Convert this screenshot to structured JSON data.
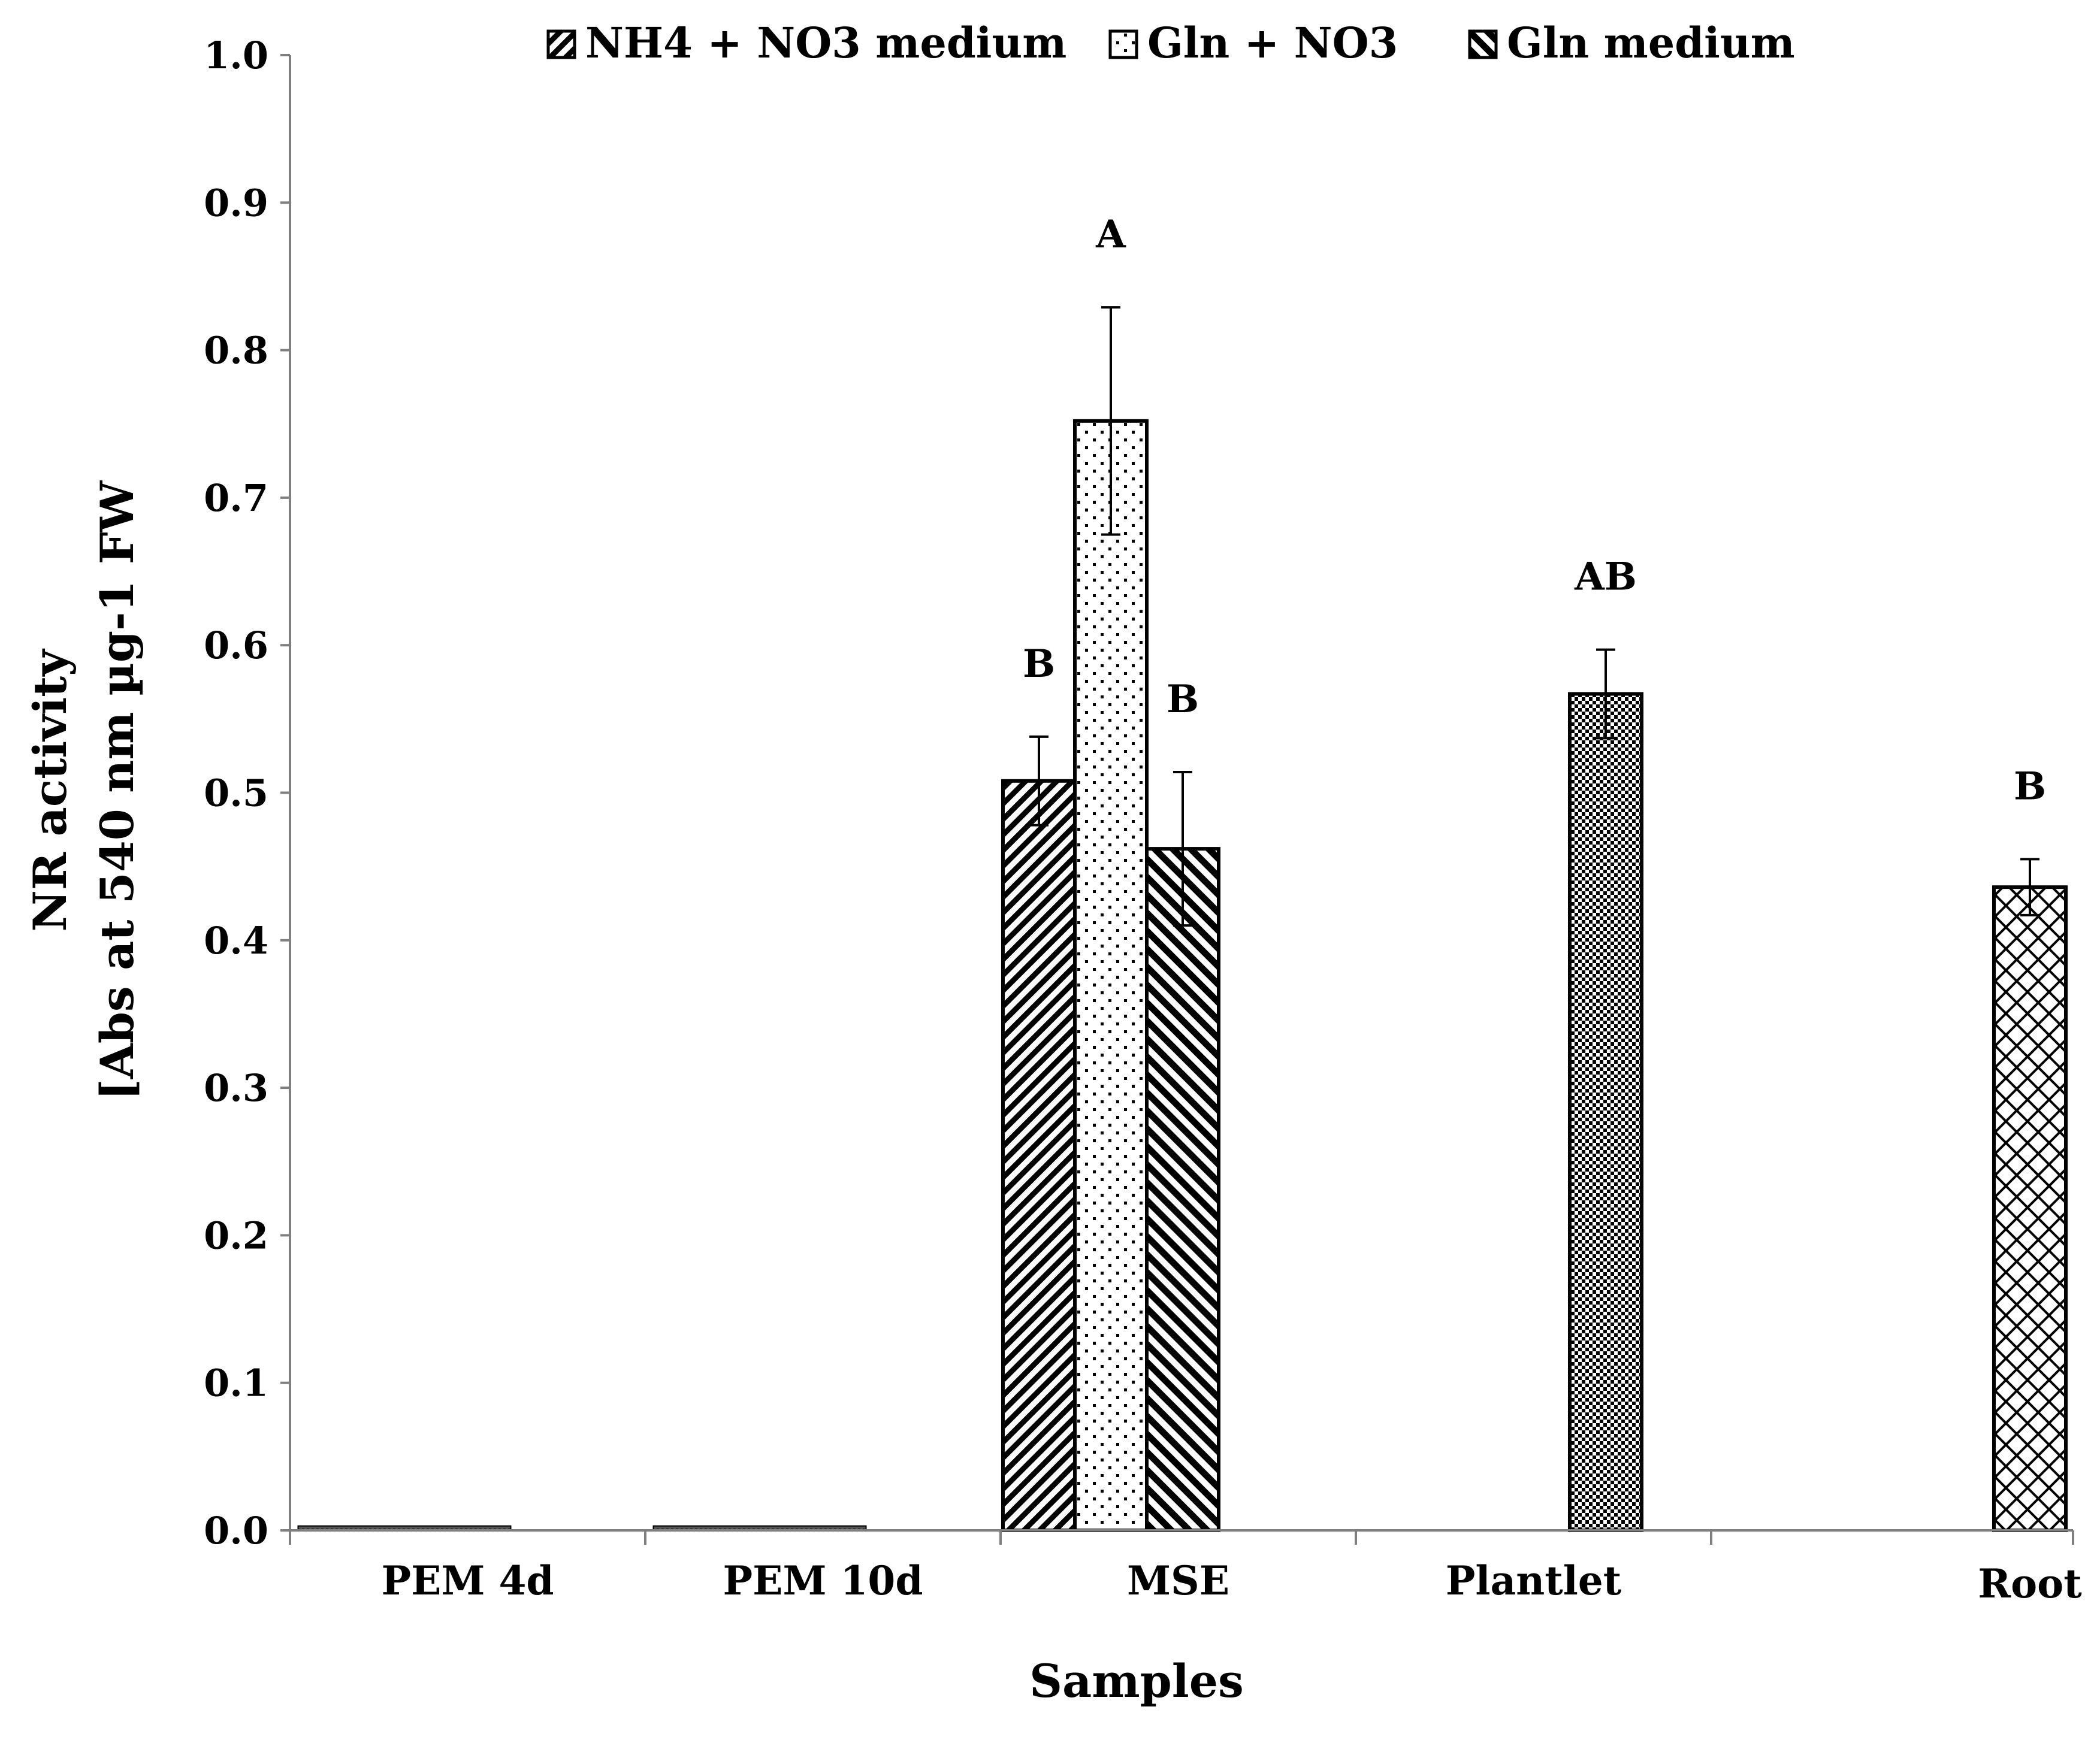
{
  "chart_data": {
    "type": "bar",
    "xlabel": "Samples",
    "ylabel_lines": [
      "NR activity",
      "[Abs at 540 nm µg-1 FW"
    ],
    "ylim": [
      0,
      1.0
    ],
    "yticks": [
      "0.0",
      "0.1",
      "0.2",
      "0.3",
      "0.4",
      "0.5",
      "0.6",
      "0.7",
      "0.8",
      "0.9",
      "1.0"
    ],
    "legend_position": "top",
    "series": [
      {
        "name": "NH4 + NO3 medium",
        "pattern": "diag-right"
      },
      {
        "name": "Gln + NO3",
        "pattern": "dots"
      },
      {
        "name": "Gln medium",
        "pattern": "diag-left"
      }
    ],
    "categories": [
      {
        "label": "PEM 4d",
        "bars": [
          {
            "pattern": "dark",
            "value": 0.003
          }
        ]
      },
      {
        "label": "PEM 10d",
        "bars": [
          {
            "pattern": "dark",
            "value": 0.003
          }
        ]
      },
      {
        "label": "MSE",
        "bars": [
          {
            "pattern": "diag-right",
            "value": 0.508,
            "error": 0.03,
            "sig": "B"
          },
          {
            "pattern": "dots",
            "value": 0.752,
            "error": 0.077,
            "sig": "A"
          },
          {
            "pattern": "diag-left",
            "value": 0.462,
            "error": 0.052,
            "sig": "B"
          }
        ]
      },
      {
        "label": "Plantlet",
        "bars": [
          {
            "pattern": "checker",
            "value": 0.567,
            "error": 0.03,
            "sig": "AB"
          }
        ]
      },
      {
        "label": "Root",
        "bars": [
          {
            "pattern": "crosshatch",
            "value": 0.436,
            "error": 0.019,
            "sig": "B"
          }
        ]
      }
    ],
    "colors": {
      "stroke": "#000000",
      "background": "#ffffff",
      "axis": "#7f7f7f"
    }
  }
}
